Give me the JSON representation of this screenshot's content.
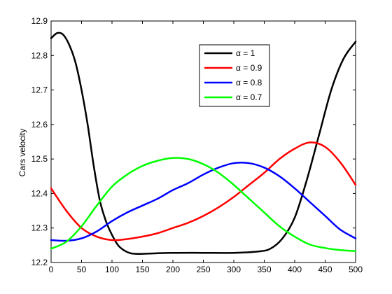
{
  "chart_data": {
    "type": "line",
    "title": "",
    "xlabel": "",
    "ylabel": "Cars velocity",
    "xlim": [
      0,
      500
    ],
    "ylim": [
      12.2,
      12.9
    ],
    "xticks": [
      0,
      50,
      100,
      150,
      200,
      250,
      300,
      350,
      400,
      450,
      500
    ],
    "yticks": [
      12.2,
      12.3,
      12.4,
      12.5,
      12.6,
      12.7,
      12.8,
      12.9
    ],
    "grid": false,
    "legend_position": "top-right",
    "series": [
      {
        "name": "α = 1",
        "color": "#000000",
        "x": [
          0,
          10,
          20,
          30,
          40,
          50,
          60,
          70,
          80,
          90,
          100,
          110,
          120,
          130,
          140,
          150,
          175,
          200,
          250,
          300,
          340,
          360,
          380,
          400,
          420,
          440,
          460,
          480,
          500
        ],
        "y": [
          12.85,
          12.865,
          12.86,
          12.83,
          12.78,
          12.7,
          12.6,
          12.48,
          12.38,
          12.32,
          12.28,
          12.25,
          12.235,
          12.227,
          12.225,
          12.225,
          12.227,
          12.228,
          12.228,
          12.228,
          12.232,
          12.24,
          12.27,
          12.33,
          12.44,
          12.57,
          12.7,
          12.79,
          12.84
        ]
      },
      {
        "name": "α = 0.9",
        "color": "#ff0000",
        "x": [
          0,
          25,
          50,
          75,
          100,
          125,
          150,
          175,
          200,
          225,
          250,
          275,
          300,
          325,
          350,
          375,
          400,
          425,
          450,
          475,
          500
        ],
        "y": [
          12.415,
          12.35,
          12.3,
          12.275,
          12.265,
          12.268,
          12.275,
          12.285,
          12.3,
          12.315,
          12.335,
          12.36,
          12.39,
          12.425,
          12.46,
          12.5,
          12.53,
          12.548,
          12.535,
          12.49,
          12.425
        ]
      },
      {
        "name": "α = 0.8",
        "color": "#0000ff",
        "x": [
          0,
          25,
          50,
          75,
          100,
          125,
          150,
          175,
          200,
          225,
          250,
          275,
          300,
          325,
          350,
          375,
          400,
          425,
          450,
          475,
          500
        ],
        "y": [
          12.265,
          12.263,
          12.27,
          12.29,
          12.32,
          12.345,
          12.365,
          12.385,
          12.41,
          12.43,
          12.455,
          12.475,
          12.488,
          12.488,
          12.475,
          12.45,
          12.415,
          12.375,
          12.335,
          12.295,
          12.27
        ]
      },
      {
        "name": "α = 0.7",
        "color": "#00ff00",
        "x": [
          0,
          25,
          50,
          75,
          100,
          125,
          150,
          175,
          200,
          225,
          250,
          275,
          300,
          325,
          350,
          375,
          400,
          425,
          450,
          475,
          500
        ],
        "y": [
          12.24,
          12.26,
          12.305,
          12.365,
          12.42,
          12.455,
          12.48,
          12.495,
          12.503,
          12.5,
          12.485,
          12.46,
          12.425,
          12.385,
          12.345,
          12.305,
          12.275,
          12.252,
          12.242,
          12.236,
          12.233
        ]
      }
    ]
  }
}
